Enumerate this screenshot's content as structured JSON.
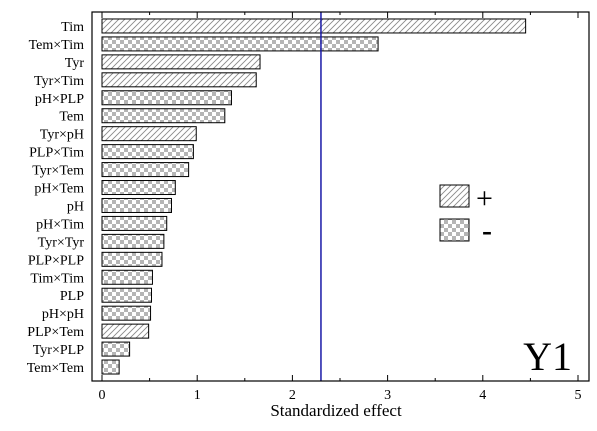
{
  "chart_data": {
    "type": "bar",
    "orientation": "horizontal",
    "categories": [
      "Tim",
      "Tem×Tim",
      "Tyr",
      "Tyr×Tim",
      "pH×PLP",
      "Tem",
      "Tyr×pH",
      "PLP×Tim",
      "Tyr×Tem",
      "pH×Tem",
      "pH",
      "pH×Tim",
      "Tyr×Tyr",
      "PLP×PLP",
      "Tim×Tim",
      "PLP",
      "pH×pH",
      "PLP×Tem",
      "Tyr×PLP",
      "Tem×Tem"
    ],
    "values": [
      4.45,
      2.9,
      1.66,
      1.62,
      1.36,
      1.29,
      0.99,
      0.96,
      0.91,
      0.77,
      0.73,
      0.68,
      0.65,
      0.63,
      0.53,
      0.52,
      0.51,
      0.49,
      0.29,
      0.18
    ],
    "signs": [
      "+",
      "-",
      "+",
      "+",
      "-",
      "-",
      "+",
      "-",
      "-",
      "-",
      "-",
      "-",
      "-",
      "-",
      "-",
      "-",
      "-",
      "+",
      "-",
      "-"
    ],
    "xlabel": "Standardized effect",
    "xlim": [
      0,
      5
    ],
    "xticks": [
      "0",
      "1",
      "2",
      "3",
      "4",
      "5"
    ],
    "reference_line": 2.3,
    "reference_line_color": "#1a1aa8",
    "grid": false,
    "legend": {
      "placement": "right",
      "entries": [
        {
          "pattern": "hatched",
          "symbol": "+"
        },
        {
          "pattern": "checkered",
          "symbol": "-"
        }
      ]
    },
    "panel_label": "Y1"
  }
}
